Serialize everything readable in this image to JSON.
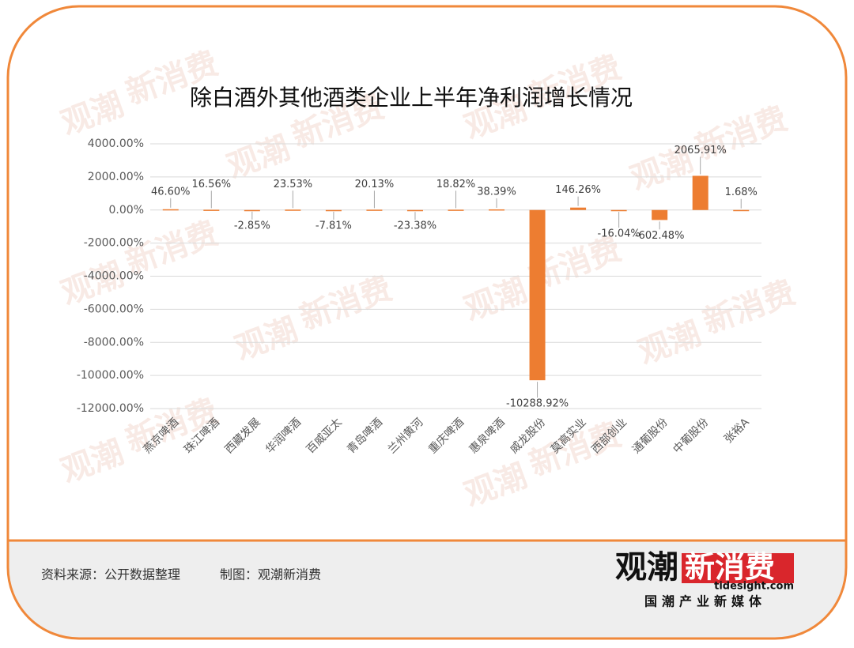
{
  "chart_data": {
    "type": "bar",
    "title": "除白酒外其他酒类企业上半年净利润增长情况",
    "categories": [
      "燕京啤酒",
      "珠江啤酒",
      "西藏发展",
      "华润啤酒",
      "百威亚太",
      "青岛啤酒",
      "兰州黄河",
      "重庆啤酒",
      "惠泉啤酒",
      "威龙股份",
      "莫高实业",
      "西部创业",
      "通葡股份",
      "中葡股份",
      "张裕A"
    ],
    "values": [
      46.6,
      16.56,
      -2.85,
      23.53,
      -7.81,
      20.13,
      -23.38,
      18.82,
      38.39,
      -10288.92,
      146.26,
      -16.04,
      -602.48,
      2065.91,
      1.68
    ],
    "value_labels": [
      "46.60%",
      "16.56%",
      "-2.85%",
      "23.53%",
      "-7.81%",
      "20.13%",
      "-23.38%",
      "18.82%",
      "38.39%",
      "-10288.92%",
      "146.26%",
      "-16.04%",
      "-602.48%",
      "2065.91%",
      "1.68%"
    ],
    "color": "#ed7d31",
    "ylim": [
      -12000,
      4000
    ],
    "yticks": [
      {
        "value": -12000,
        "label": "-12000.00%"
      },
      {
        "value": -10000,
        "label": "-10000.00%"
      },
      {
        "value": -8000,
        "label": "-8000.00%"
      },
      {
        "value": -6000,
        "label": "-6000.00%"
      },
      {
        "value": -4000,
        "label": "-4000.00%"
      },
      {
        "value": -2000,
        "label": "-2000.00%"
      },
      {
        "value": 0,
        "label": "0.00%"
      },
      {
        "value": 2000,
        "label": "2000.00%"
      },
      {
        "value": 4000,
        "label": "4000.00%"
      }
    ],
    "grid": true,
    "source": "资料来源：公开数据整理",
    "credit": "制图：观潮新消费"
  },
  "logo": {
    "name_a": "观潮",
    "name_b": "新消费",
    "site": "tidesight.com",
    "slogan": "国潮产业新媒体"
  }
}
